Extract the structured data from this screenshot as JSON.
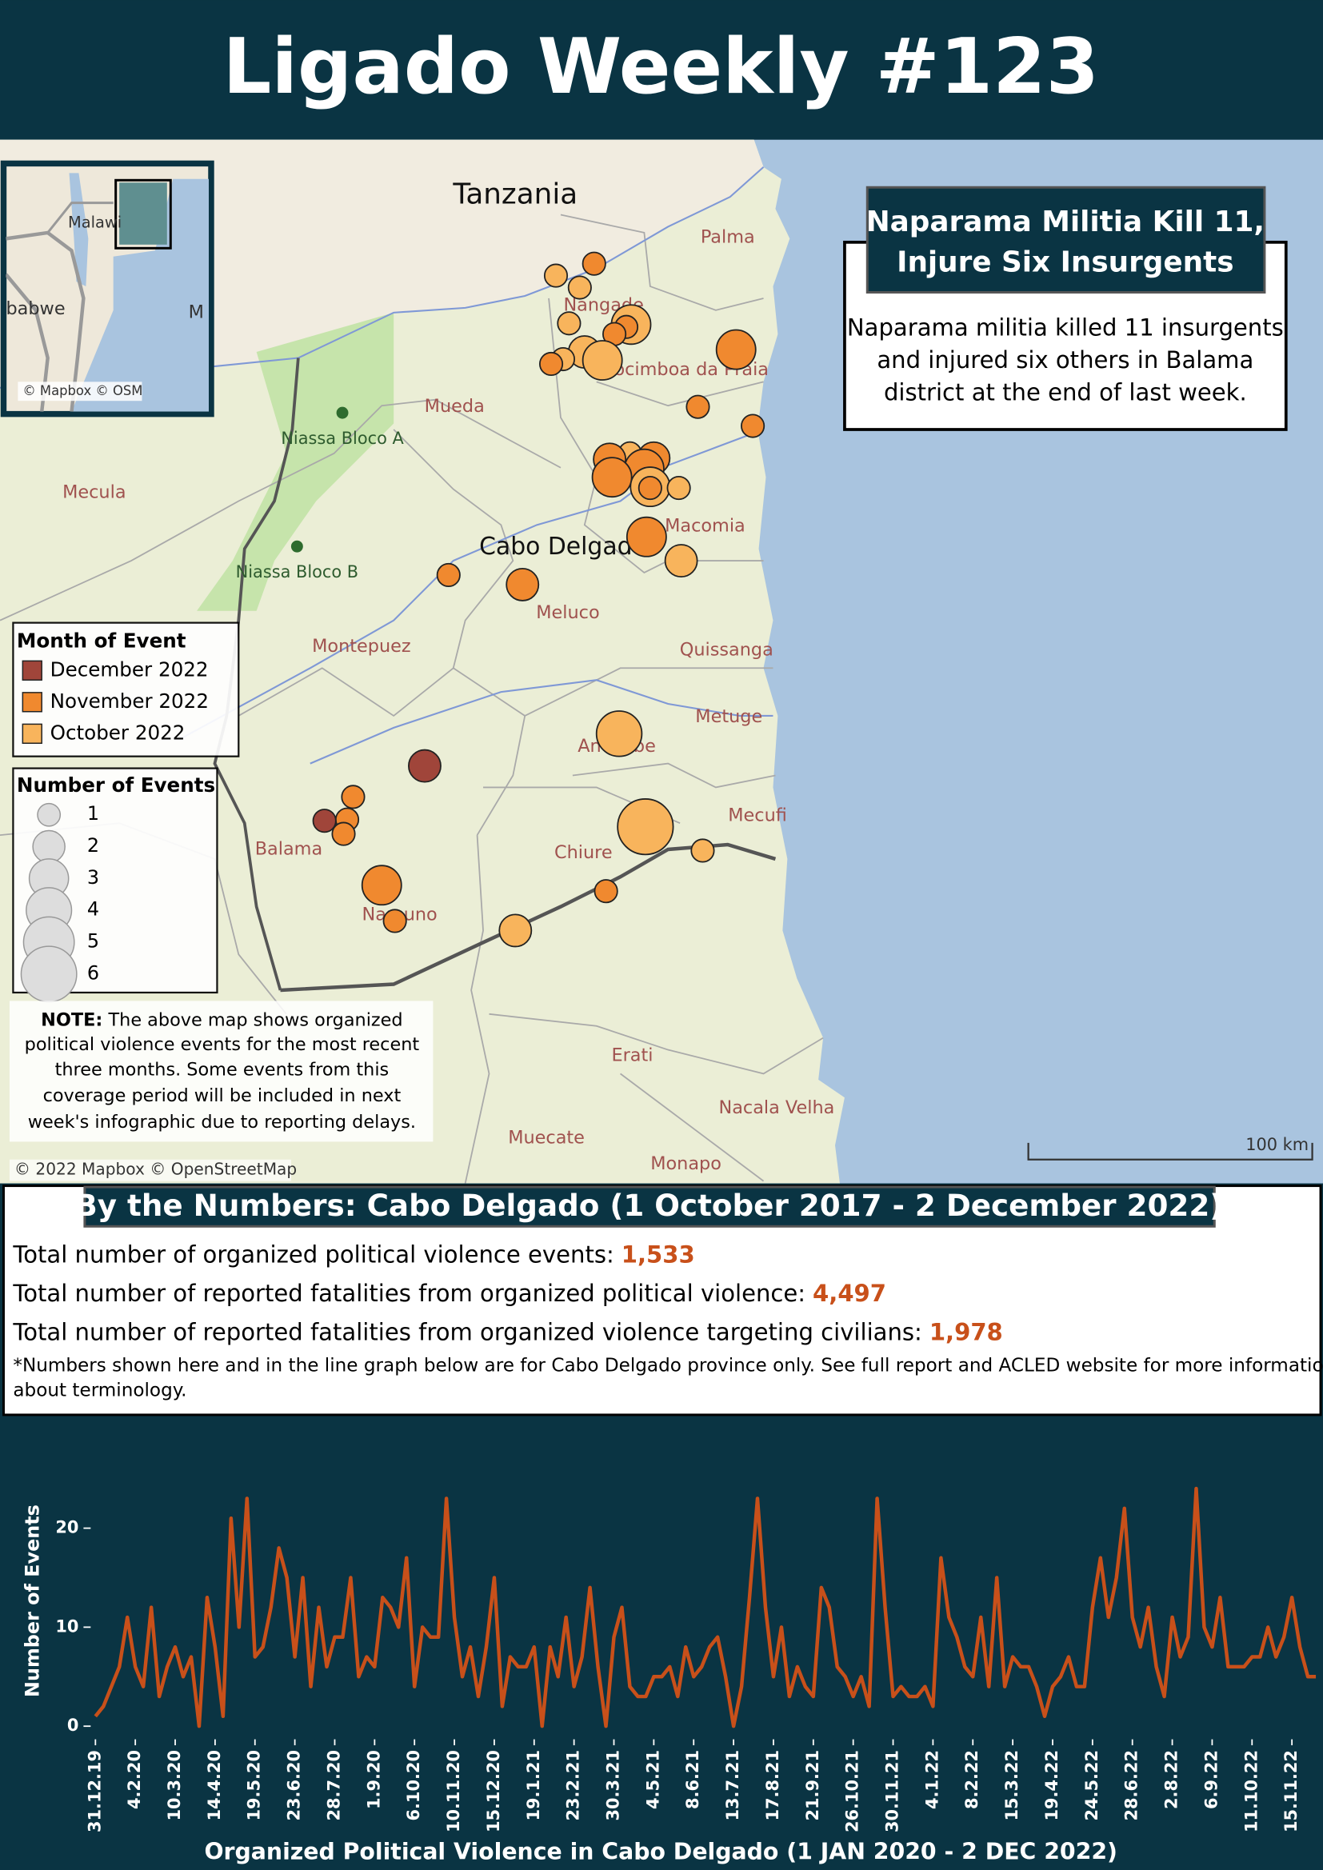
{
  "header": {
    "title": "Ligado Weekly #123"
  },
  "map": {
    "labels": {
      "country": "Tanzania",
      "province": "Cabo Delgado",
      "places": [
        "Palma",
        "Nangade",
        "Mocimboa da Praia",
        "Mueda",
        "Mecula",
        "Macomia",
        "Meluco",
        "Montepuez",
        "Quissanga",
        "Metuge",
        "Ancuabe",
        "Mecufi",
        "Balama",
        "Chiure",
        "Namuno",
        "Erati",
        "Nacala Velha",
        "Muecate",
        "Monapo"
      ],
      "parks": [
        "Niassa Bloco A",
        "Niassa Bloco B"
      ]
    },
    "inset": {
      "labels": [
        "Malawi",
        "babwe",
        "M"
      ],
      "attribution": "© Mapbox © OSM"
    },
    "headline": {
      "title_lines": [
        "Naparama Militia Kill 11,",
        "Injure Six Insurgents"
      ],
      "body_lines": [
        "Naparama militia killed 11 insurgents",
        "and injured six others in Balama",
        "district at the end of last week."
      ]
    },
    "legend_month": {
      "title": "Month of Event",
      "items": [
        {
          "label": "December 2022",
          "color": "#a0453a"
        },
        {
          "label": "November 2022",
          "color": "#f0892f"
        },
        {
          "label": "October 2022",
          "color": "#f8b45c"
        }
      ]
    },
    "legend_size": {
      "title": "Number of Events",
      "sizes": [
        1,
        2,
        3,
        4,
        5,
        6
      ]
    },
    "events": [
      {
        "count": 1,
        "color": "#f0892f"
      },
      {
        "count": 1,
        "color": "#f8b45c"
      },
      {
        "count": 1,
        "color": "#f8b45c"
      },
      {
        "count": 1,
        "color": "#f8b45c"
      },
      {
        "count": 3,
        "color": "#f8b45c"
      },
      {
        "count": 1,
        "color": "#f0892f"
      },
      {
        "count": 1,
        "color": "#f0892f"
      },
      {
        "count": 2,
        "color": "#f8b45c"
      },
      {
        "count": 1,
        "color": "#f8b45c"
      },
      {
        "count": 1,
        "color": "#f0892f"
      },
      {
        "count": 3,
        "color": "#f8b45c"
      },
      {
        "count": 3,
        "color": "#f0892f"
      },
      {
        "count": 1,
        "color": "#f0892f"
      },
      {
        "count": 1,
        "color": "#f0892f"
      },
      {
        "count": 1,
        "color": "#f8b45c"
      },
      {
        "count": 2,
        "color": "#f0892f"
      },
      {
        "count": 2,
        "color": "#f0892f"
      },
      {
        "count": 3,
        "color": "#f0892f"
      },
      {
        "count": 3,
        "color": "#f0892f"
      },
      {
        "count": 3,
        "color": "#f8b45c"
      },
      {
        "count": 1,
        "color": "#f0892f"
      },
      {
        "count": 1,
        "color": "#f8b45c"
      },
      {
        "count": 3,
        "color": "#f0892f"
      },
      {
        "count": 2,
        "color": "#f8b45c"
      },
      {
        "count": 1,
        "color": "#f0892f"
      },
      {
        "count": 2,
        "color": "#f0892f"
      },
      {
        "count": 4,
        "color": "#f8b45c"
      },
      {
        "count": 2,
        "color": "#a0453a"
      },
      {
        "count": 1,
        "color": "#f0892f"
      },
      {
        "count": 1,
        "color": "#f0892f"
      },
      {
        "count": 1,
        "color": "#a0453a"
      },
      {
        "count": 1,
        "color": "#f0892f"
      },
      {
        "count": 3,
        "color": "#f0892f"
      },
      {
        "count": 1,
        "color": "#f0892f"
      },
      {
        "count": 6,
        "color": "#f8b45c"
      },
      {
        "count": 1,
        "color": "#f8b45c"
      },
      {
        "count": 1,
        "color": "#f0892f"
      },
      {
        "count": 2,
        "color": "#f8b45c"
      }
    ],
    "note": {
      "label": "NOTE:",
      "lines": [
        "The above map shows organized",
        "political violence events for the most recent",
        "three months. Some events from this",
        "coverage period will be included in next",
        "week's infographic due to reporting delays."
      ]
    },
    "attribution": "© 2022 Mapbox © OpenStreetMap",
    "scale": "100 km"
  },
  "numbers": {
    "title": "By the Numbers: Cabo Delgado (1 October 2017 - 2 December 2022)",
    "stats": [
      {
        "label": "Total number of organized political violence events:",
        "value": "1,533"
      },
      {
        "label": "Total number of reported fatalities from organized political violence:",
        "value": "4,497"
      },
      {
        "label": "Total number of reported fatalities from organized violence targeting civilians:",
        "value": "1,978"
      }
    ],
    "footnote_lines": [
      "*Numbers shown here and in the line graph below are for Cabo Delgado province only. See full report and ACLED website for more information",
      "about terminology."
    ]
  },
  "chart_data": {
    "type": "line",
    "x_label": "Organized Political Violence in Cabo Delgado (1 JAN 2020 - 2 DEC 2022)",
    "y_label": "Number of Events",
    "color": "#c8501a",
    "categories": [
      "31.12.19",
      null,
      null,
      null,
      null,
      "4.2.20",
      null,
      null,
      null,
      null,
      "10.3.20",
      null,
      null,
      null,
      null,
      "14.4.20",
      null,
      null,
      null,
      null,
      "19.5.20",
      null,
      null,
      null,
      null,
      "23.6.20",
      null,
      null,
      null,
      null,
      "28.7.20",
      null,
      null,
      null,
      null,
      "1.9.20",
      null,
      null,
      null,
      null,
      "6.10.20",
      null,
      null,
      null,
      null,
      "10.11.20",
      null,
      null,
      null,
      null,
      "15.12.20",
      null,
      null,
      null,
      null,
      "19.1.21",
      null,
      null,
      null,
      null,
      "23.2.21",
      null,
      null,
      null,
      null,
      "30.3.21",
      null,
      null,
      null,
      null,
      "4.5.21",
      null,
      null,
      null,
      null,
      "8.6.21",
      null,
      null,
      null,
      null,
      "13.7.21",
      null,
      null,
      null,
      null,
      "17.8.21",
      null,
      null,
      null,
      null,
      "21.9.21",
      null,
      null,
      null,
      null,
      "26.10.21",
      null,
      null,
      null,
      null,
      "30.11.21",
      null,
      null,
      null,
      null,
      "4.1.22",
      null,
      null,
      null,
      null,
      "8.2.22",
      null,
      null,
      null,
      null,
      "15.3.22",
      null,
      null,
      null,
      null,
      "19.4.22",
      null,
      null,
      null,
      null,
      "24.5.22",
      null,
      null,
      null,
      null,
      "28.6.22",
      null,
      null,
      null,
      null,
      "2.8.22",
      null,
      null,
      null,
      null,
      "6.9.22",
      null,
      null,
      null,
      null,
      "11.10.22",
      null,
      null,
      null,
      null,
      "15.11.22",
      null,
      null,
      null
    ],
    "values": [
      1,
      2,
      4,
      6,
      11,
      6,
      4,
      12,
      3,
      6,
      8,
      5,
      7,
      0,
      13,
      8,
      1,
      21,
      10,
      23,
      7,
      8,
      12,
      18,
      15,
      7,
      15,
      4,
      12,
      6,
      9,
      9,
      15,
      5,
      7,
      6,
      13,
      12,
      10,
      17,
      4,
      10,
      9,
      9,
      23,
      11,
      5,
      8,
      3,
      8,
      15,
      2,
      7,
      6,
      6,
      8,
      0,
      8,
      5,
      11,
      4,
      7,
      14,
      6,
      0,
      9,
      12,
      4,
      3,
      3,
      5,
      5,
      6,
      3,
      8,
      5,
      6,
      8,
      9,
      5,
      0,
      4,
      13,
      23,
      12,
      5,
      10,
      3,
      6,
      4,
      3,
      14,
      12,
      6,
      5,
      3,
      5,
      2,
      23,
      12,
      3,
      4,
      3,
      3,
      4,
      2,
      17,
      11,
      9,
      6,
      5,
      11,
      4,
      15,
      4,
      7,
      6,
      6,
      4,
      1,
      4,
      5,
      7,
      4,
      4,
      12,
      17,
      11,
      15,
      22,
      11,
      8,
      12,
      6,
      3,
      11,
      7,
      9,
      24,
      10,
      8,
      13,
      6,
      6,
      6,
      7,
      7,
      10,
      7,
      9,
      13,
      8,
      5,
      5
    ],
    "ylim": [
      -1,
      25
    ],
    "yticks": [
      0,
      10,
      20
    ]
  }
}
